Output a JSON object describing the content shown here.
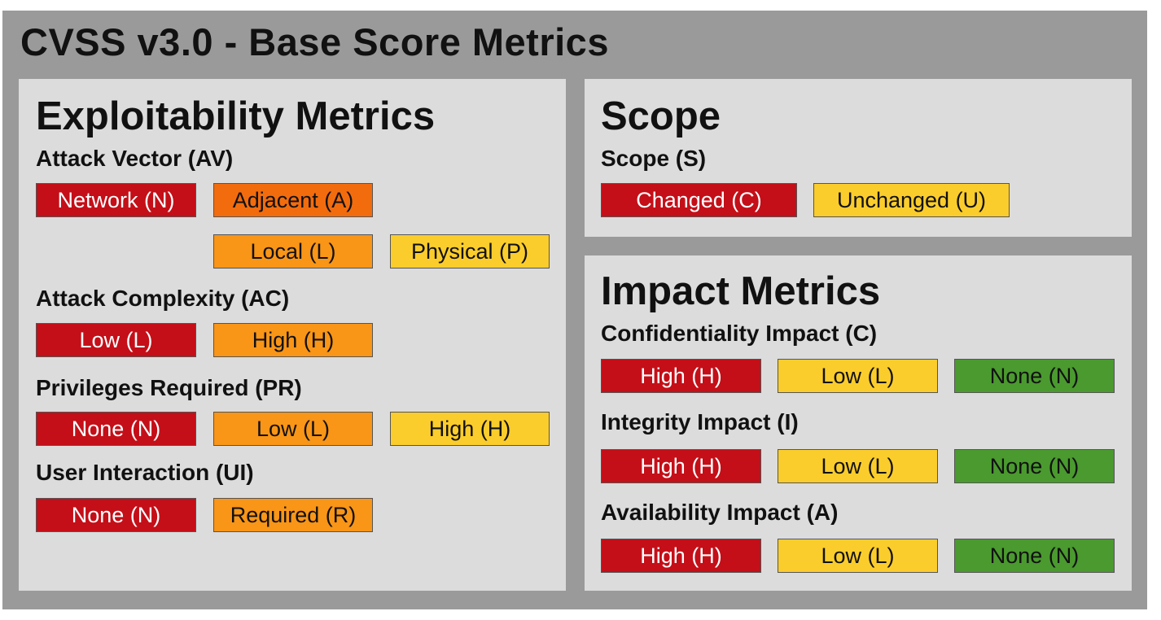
{
  "title": "CVSS v3.0 -  Base Score Metrics",
  "colors": {
    "frame": "#9a9a9a",
    "panel": "#dcdcdc",
    "critical": "#c40f18",
    "high": "#f26c0e",
    "medium": "#f99517",
    "low": "#fbcd2c",
    "none": "#4a9a2f"
  },
  "exploitability": {
    "title": "Exploitability Metrics",
    "attack_vector": {
      "label": "Attack Vector (AV)",
      "options": [
        "Network (N)",
        "Adjacent (A)",
        "Local (L)",
        "Physical (P)"
      ]
    },
    "attack_complexity": {
      "label": "Attack Complexity (AC)",
      "options": [
        "Low (L)",
        "High (H)"
      ]
    },
    "privileges_required": {
      "label": "Privileges Required (PR)",
      "options": [
        "None (N)",
        "Low (L)",
        "High (H)"
      ]
    },
    "user_interaction": {
      "label": "User Interaction (UI)",
      "options": [
        "None (N)",
        "Required (R)"
      ]
    }
  },
  "scope": {
    "title": "Scope",
    "scope_metric": {
      "label": "Scope (S)",
      "options": [
        "Changed (C)",
        "Unchanged (U)"
      ]
    }
  },
  "impact": {
    "title": "Impact Metrics",
    "confidentiality": {
      "label": "Confidentiality Impact (C)",
      "options": [
        "High (H)",
        "Low (L)",
        "None (N)"
      ]
    },
    "integrity": {
      "label": "Integrity Impact (I)",
      "options": [
        "High (H)",
        "Low (L)",
        "None (N)"
      ]
    },
    "availability": {
      "label": "Availability Impact (A)",
      "options": [
        "High (H)",
        "Low (L)",
        "None (N)"
      ]
    }
  }
}
